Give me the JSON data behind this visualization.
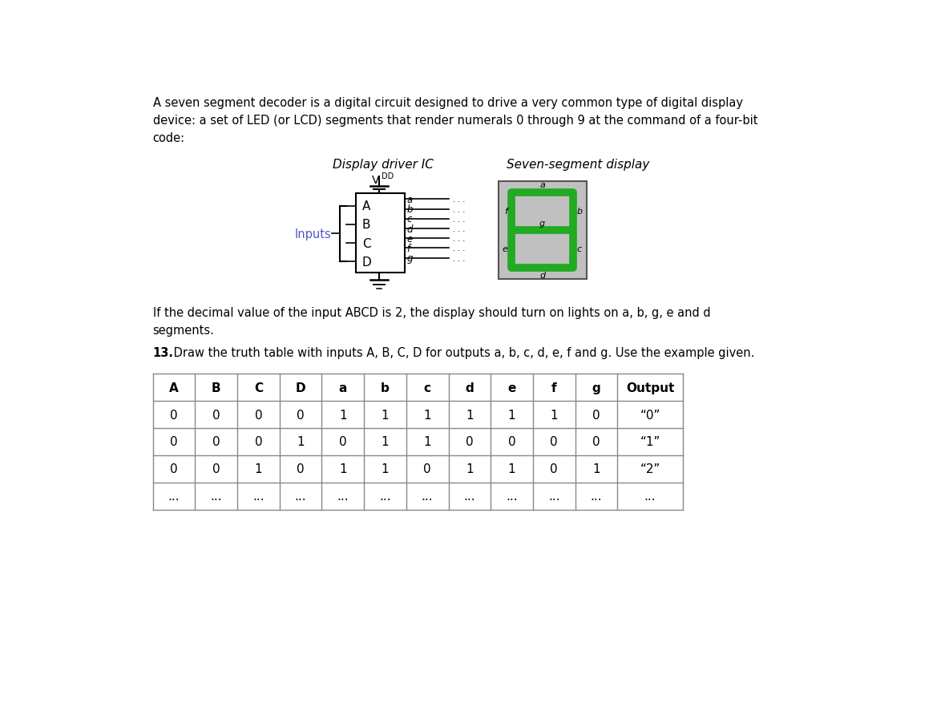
{
  "lines_p1": [
    "A seven segment decoder is a digital circuit designed to drive a very common type of digital display",
    "device: a set of LED (or LCD) segments that render numerals 0 through 9 at the command of a four-bit",
    "code:"
  ],
  "diagram_title": "Display driver IC",
  "vdd_label": "V",
  "vdd_sub": "DD",
  "seven_seg_label": "Seven-segment display",
  "inputs_label": "Inputs",
  "ic_inputs": [
    "A",
    "B",
    "C",
    "D"
  ],
  "ic_outputs": [
    "a",
    "b",
    "c",
    "d",
    "e",
    "f",
    "g"
  ],
  "lines_p2": [
    "If the decimal value of the input ABCD is 2, the display should turn on lights on a, b, g, e and d",
    "segments."
  ],
  "question_bold": "13.",
  "question_rest": " Draw the truth table with inputs A, B, C, D for outputs a, b, c, d, e, f and g. Use the example given.",
  "table_headers": [
    "A",
    "B",
    "C",
    "D",
    "a",
    "b",
    "c",
    "d",
    "e",
    "f",
    "g",
    "Output"
  ],
  "table_rows": [
    [
      "0",
      "0",
      "0",
      "0",
      "1",
      "1",
      "1",
      "1",
      "1",
      "1",
      "0",
      "“0”"
    ],
    [
      "0",
      "0",
      "0",
      "1",
      "0",
      "1",
      "1",
      "0",
      "0",
      "0",
      "0",
      "“1”"
    ],
    [
      "0",
      "0",
      "1",
      "0",
      "1",
      "1",
      "0",
      "1",
      "1",
      "0",
      "1",
      "“2”"
    ],
    [
      "...",
      "...",
      "...",
      "...",
      "...",
      "...",
      "...",
      "...",
      "...",
      "...",
      "...",
      "..."
    ]
  ],
  "green_color": "#22aa22",
  "gray_bg": "#c0c0c0",
  "blue_text": "#5555cc",
  "background": "#ffffff",
  "table_line_color": "#888888"
}
